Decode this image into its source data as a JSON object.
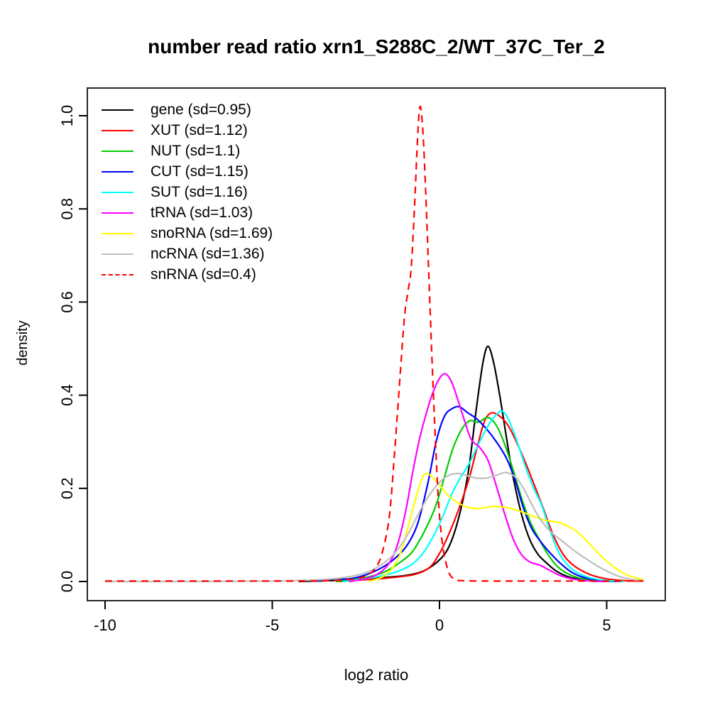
{
  "chart_data": {
    "type": "line",
    "title": "number read ratio xrn1_S288C_2/WT_37C_Ter_2",
    "xlabel": "log2 ratio",
    "ylabel": "density",
    "xlim": [
      -10.5,
      6.75
    ],
    "ylim": [
      -0.04,
      1.06
    ],
    "grid": false,
    "legend_position": "top-left",
    "x_ticks": [
      -10,
      -5,
      0,
      5
    ],
    "x_tick_labels": [
      "-10",
      "-5",
      "0",
      "5"
    ],
    "y_ticks": [
      0.0,
      0.2,
      0.4,
      0.6,
      0.8,
      1.0
    ],
    "y_tick_labels": [
      "0.0",
      "0.2",
      "0.4",
      "0.6",
      "0.8",
      "1.0"
    ],
    "series": [
      {
        "name": "gene",
        "label": "gene (sd=0.95)",
        "sd": 0.95,
        "color": "#000000",
        "dash": false,
        "points": [
          [
            -4.2,
            0
          ],
          [
            -3.2,
            0.002
          ],
          [
            -2.4,
            0.005
          ],
          [
            -1.6,
            0.009
          ],
          [
            -1.0,
            0.013
          ],
          [
            -0.5,
            0.022
          ],
          [
            -0.1,
            0.04
          ],
          [
            0.25,
            0.07
          ],
          [
            0.55,
            0.13
          ],
          [
            0.85,
            0.23
          ],
          [
            1.1,
            0.37
          ],
          [
            1.3,
            0.47
          ],
          [
            1.45,
            0.505
          ],
          [
            1.62,
            0.47
          ],
          [
            1.8,
            0.4
          ],
          [
            2.0,
            0.31
          ],
          [
            2.2,
            0.225
          ],
          [
            2.45,
            0.145
          ],
          [
            2.7,
            0.09
          ],
          [
            2.95,
            0.058
          ],
          [
            3.2,
            0.04
          ],
          [
            3.5,
            0.022
          ],
          [
            3.9,
            0.009
          ],
          [
            4.4,
            0.003
          ],
          [
            5.0,
            0.001
          ],
          [
            5.5,
            0
          ]
        ]
      },
      {
        "name": "XUT",
        "label": "XUT (sd=1.12)",
        "sd": 1.12,
        "color": "#FF0000",
        "dash": false,
        "points": [
          [
            -3.0,
            0
          ],
          [
            -2.2,
            0.004
          ],
          [
            -1.6,
            0.007
          ],
          [
            -1.1,
            0.011
          ],
          [
            -0.7,
            0.016
          ],
          [
            -0.3,
            0.03
          ],
          [
            0,
            0.06
          ],
          [
            0.3,
            0.105
          ],
          [
            0.6,
            0.16
          ],
          [
            0.9,
            0.225
          ],
          [
            1.15,
            0.295
          ],
          [
            1.35,
            0.345
          ],
          [
            1.55,
            0.362
          ],
          [
            1.8,
            0.355
          ],
          [
            2.05,
            0.335
          ],
          [
            2.3,
            0.3
          ],
          [
            2.6,
            0.25
          ],
          [
            2.9,
            0.195
          ],
          [
            3.1,
            0.158
          ],
          [
            3.4,
            0.1
          ],
          [
            3.7,
            0.058
          ],
          [
            4.0,
            0.035
          ],
          [
            4.4,
            0.018
          ],
          [
            4.9,
            0.007
          ],
          [
            5.5,
            0.002
          ],
          [
            6.1,
            0.001
          ]
        ]
      },
      {
        "name": "NUT",
        "label": "NUT (sd=1.1)",
        "sd": 1.1,
        "color": "#00CD00",
        "dash": false,
        "points": [
          [
            -3.1,
            0
          ],
          [
            -2.5,
            0.005
          ],
          [
            -2.0,
            0.012
          ],
          [
            -1.6,
            0.022
          ],
          [
            -1.2,
            0.04
          ],
          [
            -0.8,
            0.065
          ],
          [
            -0.4,
            0.115
          ],
          [
            -0.1,
            0.165
          ],
          [
            0.15,
            0.225
          ],
          [
            0.4,
            0.285
          ],
          [
            0.65,
            0.325
          ],
          [
            0.9,
            0.345
          ],
          [
            1.15,
            0.342
          ],
          [
            1.45,
            0.352
          ],
          [
            1.7,
            0.335
          ],
          [
            1.95,
            0.295
          ],
          [
            2.2,
            0.24
          ],
          [
            2.45,
            0.18
          ],
          [
            2.7,
            0.13
          ],
          [
            2.95,
            0.095
          ],
          [
            3.2,
            0.063
          ],
          [
            3.5,
            0.034
          ],
          [
            3.8,
            0.018
          ],
          [
            4.2,
            0.007
          ],
          [
            4.7,
            0.002
          ],
          [
            5.2,
            0
          ]
        ]
      },
      {
        "name": "CUT",
        "label": "CUT (sd=1.15)",
        "sd": 1.15,
        "color": "#0000FF",
        "dash": false,
        "points": [
          [
            -3.7,
            0.001
          ],
          [
            -3.1,
            0.006
          ],
          [
            -2.8,
            0.005
          ],
          [
            -2.4,
            0.01
          ],
          [
            -2.0,
            0.02
          ],
          [
            -1.6,
            0.035
          ],
          [
            -1.25,
            0.055
          ],
          [
            -0.95,
            0.08
          ],
          [
            -0.65,
            0.125
          ],
          [
            -0.35,
            0.21
          ],
          [
            -0.1,
            0.3
          ],
          [
            0.15,
            0.355
          ],
          [
            0.4,
            0.372
          ],
          [
            0.6,
            0.375
          ],
          [
            0.85,
            0.362
          ],
          [
            1.1,
            0.35
          ],
          [
            1.4,
            0.328
          ],
          [
            1.7,
            0.3
          ],
          [
            2.0,
            0.265
          ],
          [
            2.25,
            0.22
          ],
          [
            2.5,
            0.16
          ],
          [
            2.75,
            0.115
          ],
          [
            3.0,
            0.088
          ],
          [
            3.3,
            0.062
          ],
          [
            3.6,
            0.04
          ],
          [
            3.95,
            0.02
          ],
          [
            4.35,
            0.008
          ],
          [
            4.85,
            0.002
          ],
          [
            5.3,
            0
          ]
        ]
      },
      {
        "name": "SUT",
        "label": "SUT (sd=1.16)",
        "sd": 1.16,
        "color": "#00FFFF",
        "dash": false,
        "points": [
          [
            -2.9,
            0
          ],
          [
            -2.3,
            0.005
          ],
          [
            -1.8,
            0.011
          ],
          [
            -1.4,
            0.018
          ],
          [
            -1.1,
            0.026
          ],
          [
            -0.8,
            0.038
          ],
          [
            -0.5,
            0.06
          ],
          [
            -0.2,
            0.095
          ],
          [
            0.1,
            0.14
          ],
          [
            0.35,
            0.185
          ],
          [
            0.6,
            0.22
          ],
          [
            0.9,
            0.255
          ],
          [
            1.2,
            0.3
          ],
          [
            1.5,
            0.34
          ],
          [
            1.7,
            0.358
          ],
          [
            1.87,
            0.366
          ],
          [
            2.05,
            0.35
          ],
          [
            2.3,
            0.305
          ],
          [
            2.6,
            0.24
          ],
          [
            2.85,
            0.195
          ],
          [
            3.05,
            0.165
          ],
          [
            3.3,
            0.11
          ],
          [
            3.55,
            0.065
          ],
          [
            3.8,
            0.038
          ],
          [
            4.1,
            0.02
          ],
          [
            4.5,
            0.008
          ],
          [
            5.0,
            0.002
          ],
          [
            5.5,
            0
          ]
        ]
      },
      {
        "name": "tRNA",
        "label": "tRNA (sd=1.03)",
        "sd": 1.03,
        "color": "#FF00FF",
        "dash": false,
        "points": [
          [
            -2.7,
            0
          ],
          [
            -2.2,
            0.006
          ],
          [
            -1.8,
            0.018
          ],
          [
            -1.5,
            0.04
          ],
          [
            -1.25,
            0.08
          ],
          [
            -1.0,
            0.155
          ],
          [
            -0.8,
            0.235
          ],
          [
            -0.6,
            0.305
          ],
          [
            -0.4,
            0.36
          ],
          [
            -0.2,
            0.405
          ],
          [
            0,
            0.436
          ],
          [
            0.17,
            0.446
          ],
          [
            0.35,
            0.43
          ],
          [
            0.55,
            0.39
          ],
          [
            0.75,
            0.345
          ],
          [
            0.95,
            0.305
          ],
          [
            1.2,
            0.288
          ],
          [
            1.45,
            0.26
          ],
          [
            1.7,
            0.205
          ],
          [
            1.95,
            0.145
          ],
          [
            2.2,
            0.092
          ],
          [
            2.45,
            0.058
          ],
          [
            2.7,
            0.042
          ],
          [
            3.0,
            0.035
          ],
          [
            3.3,
            0.024
          ],
          [
            3.6,
            0.013
          ],
          [
            4.0,
            0.005
          ],
          [
            4.5,
            0.001
          ],
          [
            5.0,
            0
          ]
        ]
      },
      {
        "name": "snoRNA",
        "label": "snoRNA (sd=1.69)",
        "sd": 1.69,
        "color": "#FFFF00",
        "dash": false,
        "points": [
          [
            -2.1,
            0
          ],
          [
            -1.7,
            0.01
          ],
          [
            -1.45,
            0.025
          ],
          [
            -1.2,
            0.055
          ],
          [
            -1.0,
            0.1
          ],
          [
            -0.8,
            0.155
          ],
          [
            -0.6,
            0.205
          ],
          [
            -0.45,
            0.23
          ],
          [
            -0.25,
            0.227
          ],
          [
            0,
            0.207
          ],
          [
            0.3,
            0.182
          ],
          [
            0.6,
            0.167
          ],
          [
            0.9,
            0.158
          ],
          [
            1.2,
            0.157
          ],
          [
            1.6,
            0.161
          ],
          [
            2.0,
            0.159
          ],
          [
            2.4,
            0.151
          ],
          [
            2.8,
            0.14
          ],
          [
            3.2,
            0.131
          ],
          [
            3.6,
            0.126
          ],
          [
            4.0,
            0.112
          ],
          [
            4.3,
            0.095
          ],
          [
            4.6,
            0.072
          ],
          [
            4.9,
            0.05
          ],
          [
            5.2,
            0.032
          ],
          [
            5.5,
            0.018
          ],
          [
            5.8,
            0.009
          ],
          [
            6.1,
            0.004
          ]
        ]
      },
      {
        "name": "ncRNA",
        "label": "ncRNA (sd=1.36)",
        "sd": 1.36,
        "color": "#BEBEBE",
        "dash": false,
        "points": [
          [
            -10,
            0
          ],
          [
            -7,
            0
          ],
          [
            -5,
            0.001
          ],
          [
            -3.8,
            0.003
          ],
          [
            -3.0,
            0.007
          ],
          [
            -2.5,
            0.013
          ],
          [
            -2.1,
            0.022
          ],
          [
            -1.7,
            0.038
          ],
          [
            -1.35,
            0.06
          ],
          [
            -1.0,
            0.095
          ],
          [
            -0.7,
            0.135
          ],
          [
            -0.4,
            0.175
          ],
          [
            -0.1,
            0.205
          ],
          [
            0.2,
            0.225
          ],
          [
            0.5,
            0.232
          ],
          [
            0.8,
            0.228
          ],
          [
            1.1,
            0.222
          ],
          [
            1.4,
            0.222
          ],
          [
            1.7,
            0.228
          ],
          [
            2.0,
            0.234
          ],
          [
            2.3,
            0.222
          ],
          [
            2.55,
            0.195
          ],
          [
            2.8,
            0.16
          ],
          [
            3.05,
            0.13
          ],
          [
            3.35,
            0.105
          ],
          [
            3.7,
            0.085
          ],
          [
            4.05,
            0.065
          ],
          [
            4.4,
            0.048
          ],
          [
            4.75,
            0.032
          ],
          [
            5.1,
            0.019
          ],
          [
            5.45,
            0.009
          ],
          [
            5.8,
            0.004
          ],
          [
            6.1,
            0.002
          ]
        ]
      },
      {
        "name": "snRNA",
        "label": "snRNA (sd=0.4)",
        "sd": 0.4,
        "color": "#FF0000",
        "dash": true,
        "points": [
          [
            -10,
            0.001
          ],
          [
            -6,
            0.001
          ],
          [
            -4,
            0.001
          ],
          [
            -3.2,
            0.002
          ],
          [
            -2.6,
            0.005
          ],
          [
            -2.2,
            0.012
          ],
          [
            -1.9,
            0.03
          ],
          [
            -1.7,
            0.065
          ],
          [
            -1.5,
            0.14
          ],
          [
            -1.35,
            0.27
          ],
          [
            -1.2,
            0.42
          ],
          [
            -1.05,
            0.565
          ],
          [
            -0.95,
            0.62
          ],
          [
            -0.85,
            0.67
          ],
          [
            -0.75,
            0.8
          ],
          [
            -0.65,
            0.96
          ],
          [
            -0.58,
            1.02
          ],
          [
            -0.5,
            0.97
          ],
          [
            -0.42,
            0.85
          ],
          [
            -0.32,
            0.66
          ],
          [
            -0.22,
            0.47
          ],
          [
            -0.12,
            0.3
          ],
          [
            -0.02,
            0.16
          ],
          [
            0.1,
            0.075
          ],
          [
            0.25,
            0.025
          ],
          [
            0.4,
            0.007
          ],
          [
            0.6,
            0.002
          ],
          [
            1.5,
            0.001
          ],
          [
            3.0,
            0.001
          ],
          [
            6.1,
            0.001
          ]
        ]
      }
    ]
  }
}
